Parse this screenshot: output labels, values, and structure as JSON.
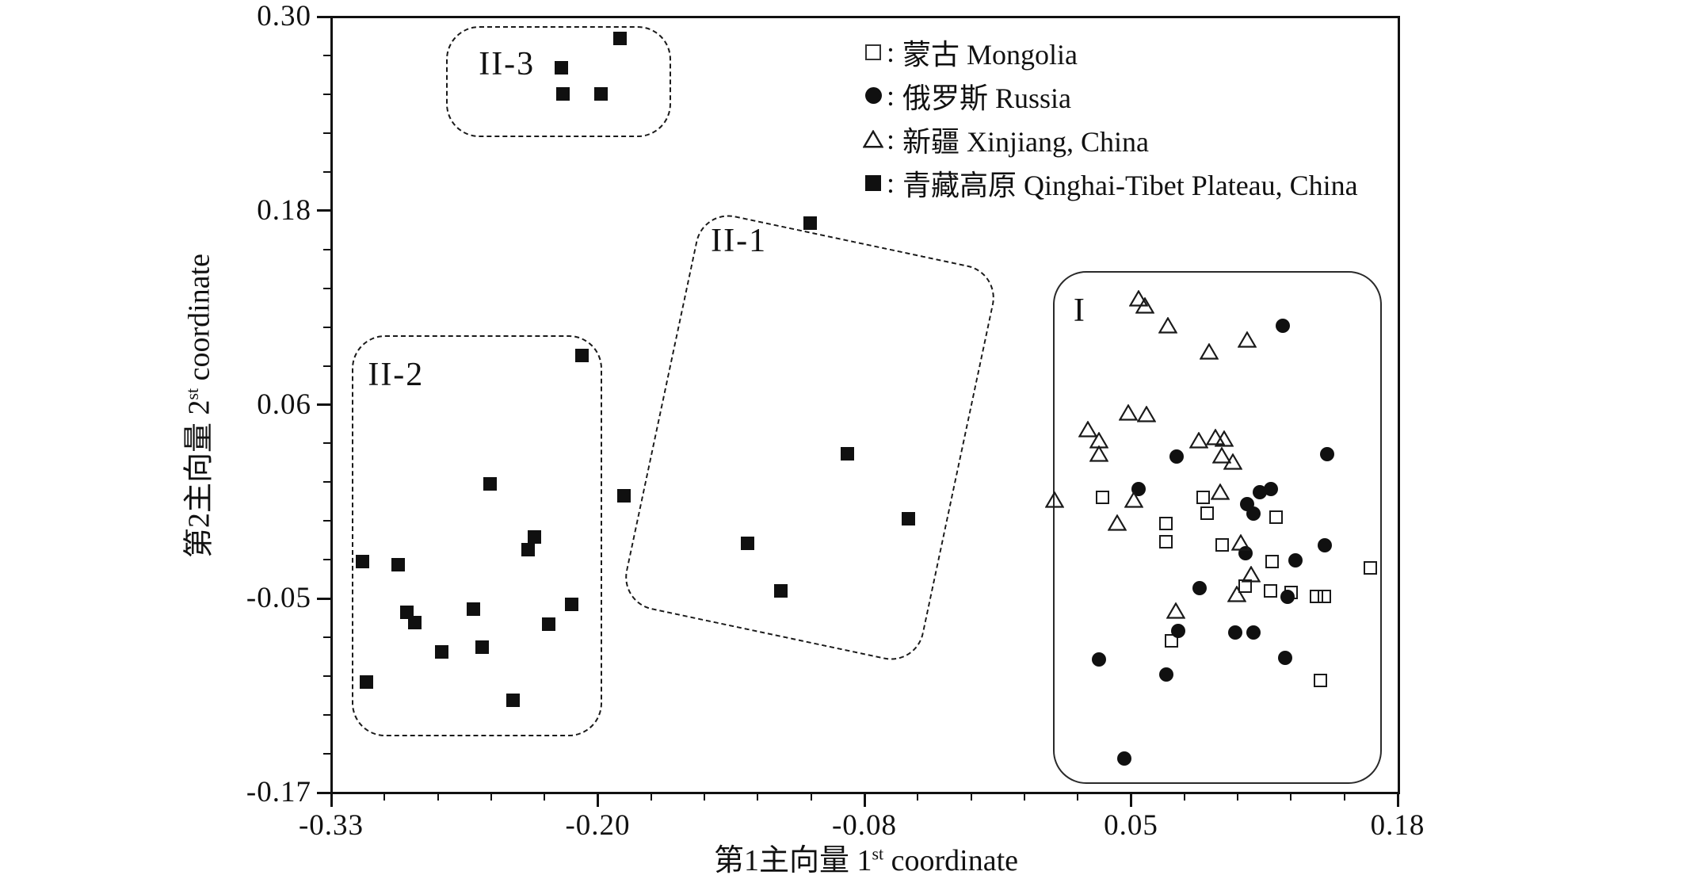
{
  "figure": {
    "background": "#ffffff",
    "ink": "#111111"
  },
  "legend": {
    "separator": ":",
    "items": [
      {
        "symbol": "square-open",
        "label": "蒙古 Mongolia"
      },
      {
        "symbol": "circle-filled",
        "label": "俄罗斯 Russia"
      },
      {
        "symbol": "triangle-open",
        "label": "新疆 Xinjiang, China"
      },
      {
        "symbol": "square-filled",
        "label": "青藏高原 Qinghai-Tibet Plateau, China"
      }
    ]
  },
  "axes": {
    "x": {
      "title_prefix": "第1主向量 1",
      "title_sup": "st",
      "title_suffix": " coordinate",
      "tick_labels": [
        "-0.33",
        "-0.20",
        "-0.08",
        "0.05",
        "0.18"
      ],
      "min": -0.33,
      "max": 0.18,
      "minor_divisions": 5
    },
    "y": {
      "title_prefix": "第2主向量 2",
      "title_sup": "st",
      "title_suffix": " coordinate",
      "tick_labels": [
        "0.30",
        "0.18",
        "0.06",
        "-0.05",
        "-0.17"
      ],
      "min": -0.17,
      "max": 0.3,
      "minor_divisions": 5
    }
  },
  "chart_data": {
    "type": "scatter",
    "xlabel": "第1主向量 1st coordinate",
    "ylabel": "第2主向量 2st coordinate",
    "xlim": [
      -0.33,
      0.18
    ],
    "ylim": [
      -0.17,
      0.3
    ],
    "grid": false,
    "legend_position": "top-right-inside",
    "series": [
      {
        "name": "蒙古 Mongolia",
        "key": "mongolia",
        "marker": "square-open",
        "points": [
          [
            0.039,
            0.009
          ],
          [
            0.087,
            0.009
          ],
          [
            0.089,
            -0.001
          ],
          [
            0.122,
            -0.003
          ],
          [
            0.069,
            -0.007
          ],
          [
            0.069,
            -0.018
          ],
          [
            0.096,
            -0.02
          ],
          [
            0.12,
            -0.03
          ],
          [
            0.167,
            -0.034
          ],
          [
            0.107,
            -0.045
          ],
          [
            0.119,
            -0.048
          ],
          [
            0.129,
            -0.049
          ],
          [
            0.141,
            -0.051
          ],
          [
            0.145,
            -0.051
          ],
          [
            0.072,
            -0.078
          ],
          [
            0.143,
            -0.102
          ]
        ]
      },
      {
        "name": "俄罗斯 Russia",
        "key": "russia",
        "marker": "circle-filled",
        "points": [
          [
            0.125,
            0.113
          ],
          [
            0.074,
            0.034
          ],
          [
            0.146,
            0.035
          ],
          [
            0.056,
            0.014
          ],
          [
            0.114,
            0.012
          ],
          [
            0.119,
            0.014
          ],
          [
            0.108,
            0.005
          ],
          [
            0.111,
            -0.001
          ],
          [
            0.107,
            -0.025
          ],
          [
            0.131,
            -0.029
          ],
          [
            0.145,
            -0.02
          ],
          [
            0.127,
            -0.051
          ],
          [
            0.085,
            -0.046
          ],
          [
            0.075,
            -0.072
          ],
          [
            0.102,
            -0.073
          ],
          [
            0.111,
            -0.073
          ],
          [
            0.037,
            -0.089
          ],
          [
            0.126,
            -0.088
          ],
          [
            0.069,
            -0.098
          ],
          [
            0.049,
            -0.149
          ]
        ]
      },
      {
        "name": "新疆 Xinjiang, China",
        "key": "xinjiang",
        "marker": "triangle-open",
        "points": [
          [
            0.056,
            0.129
          ],
          [
            0.059,
            0.125
          ],
          [
            0.07,
            0.113
          ],
          [
            0.09,
            0.097
          ],
          [
            0.108,
            0.104
          ],
          [
            0.051,
            0.06
          ],
          [
            0.06,
            0.059
          ],
          [
            0.032,
            0.05
          ],
          [
            0.037,
            0.043
          ],
          [
            0.037,
            0.035
          ],
          [
            0.085,
            0.043
          ],
          [
            0.093,
            0.045
          ],
          [
            0.097,
            0.044
          ],
          [
            0.096,
            0.034
          ],
          [
            0.101,
            0.03
          ],
          [
            0.016,
            0.007
          ],
          [
            0.054,
            0.007
          ],
          [
            0.046,
            -0.007
          ],
          [
            0.095,
            0.012
          ],
          [
            0.105,
            -0.019
          ],
          [
            0.11,
            -0.038
          ],
          [
            0.103,
            -0.05
          ],
          [
            0.074,
            -0.06
          ]
        ]
      },
      {
        "name": "青藏高原 Qinghai-Tibet Plateau, China",
        "key": "qinghai-tibet",
        "marker": "square-filled",
        "points": [
          [
            -0.192,
            0.287
          ],
          [
            -0.22,
            0.269
          ],
          [
            -0.219,
            0.253
          ],
          [
            -0.201,
            0.253
          ],
          [
            -0.101,
            0.175
          ],
          [
            -0.083,
            0.035
          ],
          [
            -0.054,
            -0.004
          ],
          [
            -0.131,
            -0.019
          ],
          [
            -0.115,
            -0.048
          ],
          [
            -0.19,
            0.01
          ],
          [
            -0.21,
            0.095
          ],
          [
            -0.254,
            0.017
          ],
          [
            -0.315,
            -0.03
          ],
          [
            -0.298,
            -0.032
          ],
          [
            -0.236,
            -0.023
          ],
          [
            -0.233,
            -0.015
          ],
          [
            -0.294,
            -0.061
          ],
          [
            -0.29,
            -0.067
          ],
          [
            -0.262,
            -0.059
          ],
          [
            -0.226,
            -0.068
          ],
          [
            -0.215,
            -0.056
          ],
          [
            -0.277,
            -0.085
          ],
          [
            -0.258,
            -0.082
          ],
          [
            -0.313,
            -0.103
          ],
          [
            -0.243,
            -0.114
          ]
        ]
      }
    ],
    "annotations": [
      {
        "label": "II-3",
        "style": "dashed",
        "x": [
          -0.275,
          -0.169
        ],
        "y": [
          0.229,
          0.294
        ],
        "label_at": [
          -0.246,
          0.271
        ]
      },
      {
        "label": "II-1",
        "style": "dashed",
        "rotated": {
          "cx": -0.102,
          "cy": 0.046,
          "w": 0.144,
          "h": 0.242,
          "rot_deg": 12
        },
        "label_at": [
          -0.135,
          0.164
        ]
      },
      {
        "label": "II-2",
        "style": "dashed",
        "x": [
          -0.32,
          -0.202
        ],
        "y": [
          -0.134,
          0.107
        ],
        "label_at": [
          -0.299,
          0.083
        ]
      },
      {
        "label": "I",
        "style": "solid",
        "x": [
          0.015,
          0.171
        ],
        "y": [
          -0.163,
          0.146
        ],
        "label_at": [
          0.028,
          0.122
        ]
      }
    ]
  }
}
